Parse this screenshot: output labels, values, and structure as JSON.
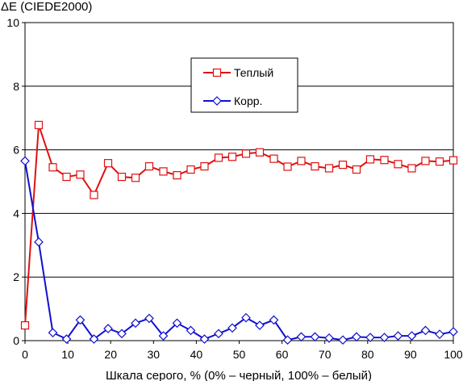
{
  "chart_data": {
    "type": "line",
    "ylabel": "ΔE (CIEDE2000)",
    "xlabel": "Шкала серого, % (0% – черный, 100% – белый)",
    "xlim": [
      0,
      100
    ],
    "ylim": [
      0,
      10
    ],
    "x_ticks": [
      "0",
      "10",
      "20",
      "30",
      "40",
      "50",
      "60",
      "70",
      "80",
      "90",
      "100"
    ],
    "y_ticks": [
      "0",
      "2",
      "4",
      "6",
      "8",
      "10"
    ],
    "grid": "horizontal",
    "legend_position": "top-center",
    "x": [
      0,
      3.2,
      6.5,
      9.7,
      12.9,
      16.1,
      19.4,
      22.6,
      25.8,
      29.0,
      32.3,
      35.5,
      38.7,
      41.9,
      45.2,
      48.4,
      51.6,
      54.8,
      58.1,
      61.3,
      64.5,
      67.7,
      71.0,
      74.2,
      77.4,
      80.6,
      83.9,
      87.1,
      90.3,
      93.5,
      96.8,
      100
    ],
    "series": [
      {
        "name": "Теплый",
        "color": "#e01010",
        "marker": "square",
        "values": [
          0.48,
          6.78,
          5.45,
          5.15,
          5.22,
          4.58,
          5.58,
          5.15,
          5.12,
          5.48,
          5.32,
          5.2,
          5.38,
          5.48,
          5.75,
          5.78,
          5.88,
          5.92,
          5.72,
          5.47,
          5.65,
          5.48,
          5.42,
          5.53,
          5.38,
          5.7,
          5.68,
          5.55,
          5.42,
          5.65,
          5.63,
          5.67
        ]
      },
      {
        "name": "Корр.",
        "color": "#1010d0",
        "marker": "diamond",
        "values": [
          5.65,
          3.1,
          0.25,
          0.05,
          0.65,
          0.05,
          0.38,
          0.22,
          0.55,
          0.7,
          0.15,
          0.55,
          0.32,
          0.05,
          0.22,
          0.4,
          0.72,
          0.48,
          0.65,
          0.02,
          0.12,
          0.12,
          0.08,
          0.02,
          0.12,
          0.1,
          0.1,
          0.15,
          0.15,
          0.32,
          0.2,
          0.28
        ]
      }
    ]
  }
}
